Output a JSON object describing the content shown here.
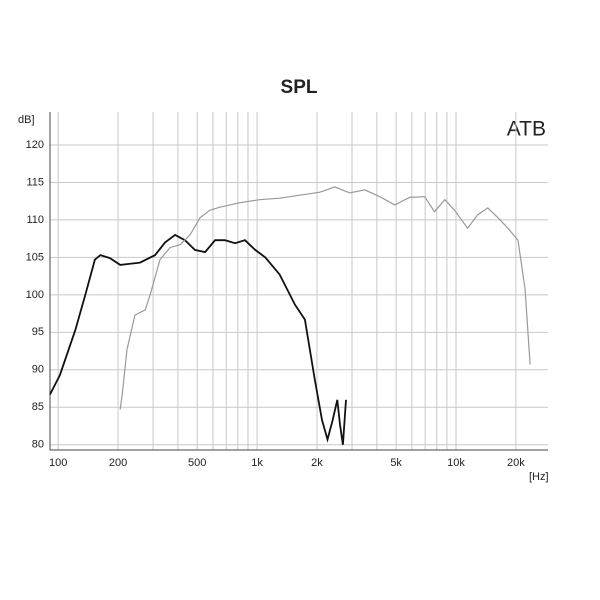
{
  "chart_data": {
    "type": "line",
    "title": "SPL",
    "ylabel": "dB]",
    "xlabel": "[Hz]",
    "annotation": "ATB",
    "log_x": true,
    "grid": true,
    "xlim": [
      91,
      29000
    ],
    "ylim": [
      79.3,
      124.4
    ],
    "xticks": [
      100,
      200,
      500,
      {
        "value": 1000,
        "label": "1k"
      },
      {
        "value": 2000,
        "label": "2k"
      },
      {
        "value": 5000,
        "label": "5k"
      },
      {
        "value": 10000,
        "label": "10k"
      },
      {
        "value": 20000,
        "label": "20k"
      }
    ],
    "x_minor_ticks": [
      300,
      400,
      600,
      700,
      800,
      900,
      3000,
      4000,
      6000,
      7000,
      8000,
      9000
    ],
    "yticks": [
      80,
      85,
      90,
      95,
      100,
      105,
      110,
      115,
      120
    ],
    "series": [
      {
        "color": "#111111",
        "x": [
          91,
          102,
          122,
          137,
          153,
          163,
          182,
          205,
          258,
          307,
          345,
          387,
          434,
          487,
          548,
          615,
          690,
          775,
          870,
          978,
          1100,
          1300,
          1550,
          1740,
          1950,
          2120,
          2260,
          2400,
          2530,
          2610,
          2700,
          2800
        ],
        "values": [
          86.7,
          89.3,
          95.3,
          100,
          104.7,
          105.3,
          104.9,
          104,
          104.3,
          105.3,
          107,
          108,
          107.3,
          106,
          105.7,
          107.3,
          107.3,
          106.9,
          107.3,
          106,
          105,
          102.7,
          98.7,
          96.7,
          88.7,
          83.3,
          80.7,
          83.3,
          86,
          82.7,
          80,
          86
        ]
      },
      {
        "color": "#999999",
        "x": [
          205,
          210,
          222,
          243,
          274,
          290,
          325,
          365,
          410,
          460,
          517,
          580,
          650,
          820,
          1030,
          1300,
          1640,
          2070,
          2460,
          2920,
          3480,
          4140,
          4920,
          5850,
          6960,
          7800,
          8780,
          9840,
          11440,
          12850,
          14440,
          16230,
          18240,
          20500,
          22250,
          23560
        ],
        "values": [
          84.7,
          86.7,
          92.7,
          97.3,
          98,
          100,
          104.7,
          106.3,
          106.7,
          108,
          110.3,
          111.3,
          111.7,
          112.3,
          112.7,
          112.9,
          113.3,
          113.7,
          114.4,
          113.6,
          114,
          113.1,
          112,
          113,
          113.1,
          111.1,
          112.7,
          111.3,
          108.9,
          110.7,
          111.6,
          110.3,
          108.9,
          107.3,
          100.7,
          90.7
        ]
      }
    ]
  }
}
